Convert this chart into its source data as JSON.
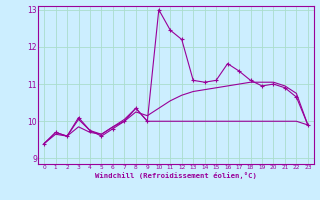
{
  "xlabel": "Windchill (Refroidissement éolien,°C)",
  "bg_color": "#cceeff",
  "line_color": "#990099",
  "grid_color": "#aaddcc",
  "x_hours": [
    0,
    1,
    2,
    3,
    4,
    5,
    6,
    7,
    8,
    9,
    10,
    11,
    12,
    13,
    14,
    15,
    16,
    17,
    18,
    19,
    20,
    21,
    22,
    23
  ],
  "line1_y": [
    9.4,
    9.7,
    9.6,
    10.1,
    9.75,
    9.6,
    9.8,
    10.0,
    10.35,
    10.0,
    13.0,
    12.45,
    12.2,
    11.1,
    11.05,
    11.1,
    11.55,
    11.35,
    11.1,
    10.95,
    11.0,
    10.9,
    10.65,
    9.9
  ],
  "line2_y": [
    9.4,
    9.7,
    9.6,
    10.05,
    9.75,
    9.65,
    9.85,
    10.05,
    10.35,
    10.0,
    10.0,
    10.0,
    10.0,
    10.0,
    10.0,
    10.0,
    10.0,
    10.0,
    10.0,
    10.0,
    10.0,
    10.0,
    10.0,
    9.9
  ],
  "line3_y": [
    9.4,
    9.65,
    9.6,
    9.85,
    9.7,
    9.65,
    9.85,
    10.0,
    10.25,
    10.15,
    10.35,
    10.55,
    10.7,
    10.8,
    10.85,
    10.9,
    10.95,
    11.0,
    11.05,
    11.05,
    11.05,
    10.95,
    10.75,
    9.9
  ],
  "ylim": [
    8.85,
    13.1
  ],
  "yticks": [
    9,
    10,
    11,
    12,
    13
  ],
  "xlim": [
    -0.5,
    23.5
  ]
}
